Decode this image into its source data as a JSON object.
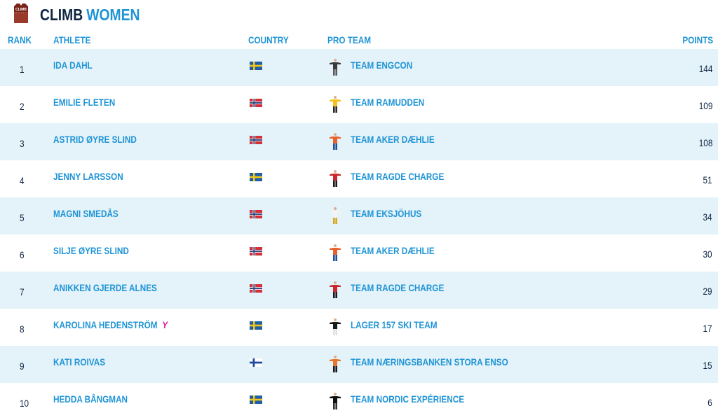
{
  "header": {
    "title_part1": "CLIMB",
    "title_part2": "WOMEN",
    "logo": {
      "icon": "climb-jersey-icon",
      "text": "CLIMB"
    }
  },
  "columns": {
    "rank": "RANK",
    "athlete": "ATHLETE",
    "country": "COUNTRY",
    "team": "PRO TEAM",
    "points": "POINTS"
  },
  "colors": {
    "accent": "#1e94d6",
    "dark": "#0f2542",
    "row_alt": "#e4f2f9",
    "leader_jersey": "#e01ea8"
  },
  "rows": [
    {
      "rank": "1",
      "athlete": "IDA DAHL",
      "country": "sweden-flag-icon",
      "team": "TEAM ENGCON",
      "team_icon": "team-engcon-jersey-icon",
      "points": "144"
    },
    {
      "rank": "2",
      "athlete": "EMILIE FLETEN",
      "country": "norway-flag-icon",
      "team": "TEAM RAMUDDEN",
      "team_icon": "team-ramudden-jersey-icon",
      "points": "109"
    },
    {
      "rank": "3",
      "athlete": "ASTRID ØYRE SLIND",
      "country": "norway-flag-icon",
      "team": "TEAM AKER DÆHLIE",
      "team_icon": "team-aker-daehlie-jersey-icon",
      "points": "108"
    },
    {
      "rank": "4",
      "athlete": "JENNY LARSSON",
      "country": "sweden-flag-icon",
      "team": "TEAM RAGDE CHARGE",
      "team_icon": "team-ragde-charge-jersey-icon",
      "points": "51"
    },
    {
      "rank": "5",
      "athlete": "MAGNI SMEDÅS",
      "country": "norway-flag-icon",
      "team": "TEAM EKSJÖHUS",
      "team_icon": "team-eksjohus-jersey-icon",
      "points": "34"
    },
    {
      "rank": "6",
      "athlete": "SILJE ØYRE SLIND",
      "country": "norway-flag-icon",
      "team": "TEAM AKER DÆHLIE",
      "team_icon": "team-aker-daehlie-jersey-icon",
      "points": "30"
    },
    {
      "rank": "7",
      "athlete": "ANIKKEN GJERDE ALNES",
      "country": "norway-flag-icon",
      "team": "TEAM RAGDE CHARGE",
      "team_icon": "team-ragde-charge-jersey-icon",
      "points": "29"
    },
    {
      "rank": "8",
      "athlete": "KAROLINA HEDENSTRÖM",
      "athlete_badge": "Y",
      "country": "sweden-flag-icon",
      "team": "LAGER 157 SKI TEAM",
      "team_icon": "lager-157-jersey-icon",
      "points": "17"
    },
    {
      "rank": "9",
      "athlete": "KATI ROIVAS",
      "country": "finland-flag-icon",
      "team": "TEAM NÆRINGSBANKEN STORA ENSO",
      "team_icon": "team-naeringsbanken-jersey-icon",
      "points": "15"
    },
    {
      "rank": "10",
      "athlete": "HEDDA BÅNGMAN",
      "country": "sweden-flag-icon",
      "team": "TEAM NORDIC EXPÉRIENCE",
      "team_icon": "team-nordic-experience-jersey-icon",
      "points": "6"
    }
  ]
}
